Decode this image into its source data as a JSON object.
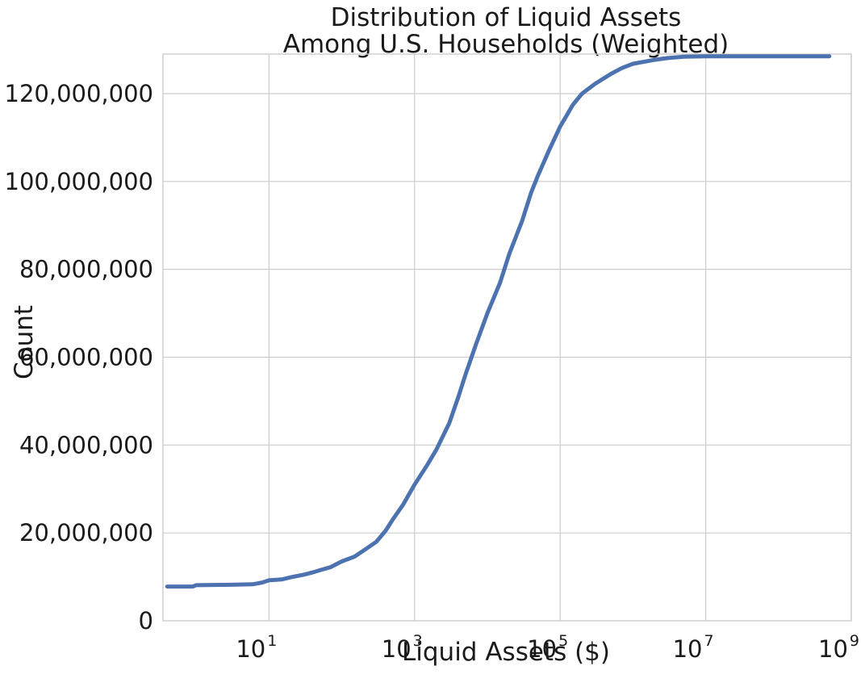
{
  "chart_data": {
    "type": "line",
    "title": [
      "Distribution of Liquid Assets",
      "Among U.S. Households (Weighted)"
    ],
    "xlabel": "Liquid Assets ($)",
    "ylabel": "Count",
    "xscale": "log",
    "xlim": [
      0.35,
      1000000000
    ],
    "ylim": [
      0,
      129000000
    ],
    "grid": true,
    "x_ticks": [
      {
        "value": 10,
        "base": "10",
        "exp": "1"
      },
      {
        "value": 1000,
        "base": "10",
        "exp": "3"
      },
      {
        "value": 100000,
        "base": "10",
        "exp": "5"
      },
      {
        "value": 10000000,
        "base": "10",
        "exp": "7"
      },
      {
        "value": 1000000000,
        "base": "10",
        "exp": "9"
      }
    ],
    "y_ticks": [
      {
        "value": 0,
        "label": "0"
      },
      {
        "value": 20000000,
        "label": "20,000,000"
      },
      {
        "value": 40000000,
        "label": "40,000,000"
      },
      {
        "value": 60000000,
        "label": "60,000,000"
      },
      {
        "value": 80000000,
        "label": "80,000,000"
      },
      {
        "value": 100000000,
        "label": "100,000,000"
      },
      {
        "value": 120000000,
        "label": "120,000,000"
      }
    ],
    "series": [
      {
        "color": "#4c72b0",
        "x": [
          0.4,
          0.9,
          1,
          3,
          6,
          8,
          10,
          15,
          20,
          30,
          40,
          50,
          70,
          100,
          150,
          200,
          300,
          400,
          500,
          700,
          1000,
          1500,
          2000,
          3000,
          4000,
          5000,
          7000,
          10000,
          15000,
          20000,
          30000,
          40000,
          50000,
          70000,
          100000,
          150000,
          200000,
          300000,
          500000,
          700000,
          1000000,
          2000000,
          3000000,
          5000000,
          10000000,
          20000000,
          50000000,
          100000000,
          300000000,
          500000000
        ],
        "y": [
          7800000,
          7800000,
          8100000,
          8200000,
          8300000,
          8700000,
          9200000,
          9400000,
          9900000,
          10500000,
          11000000,
          11500000,
          12200000,
          13500000,
          14600000,
          16000000,
          18000000,
          20500000,
          23000000,
          26500000,
          31000000,
          35500000,
          39000000,
          45000000,
          51000000,
          56000000,
          63000000,
          70000000,
          77000000,
          83500000,
          91000000,
          97500000,
          101500000,
          107000000,
          112500000,
          117500000,
          120000000,
          122200000,
          124500000,
          125800000,
          126800000,
          127700000,
          128100000,
          128400000,
          128500000,
          128500000,
          128500000,
          128500000,
          128500000,
          128500000
        ]
      }
    ]
  }
}
